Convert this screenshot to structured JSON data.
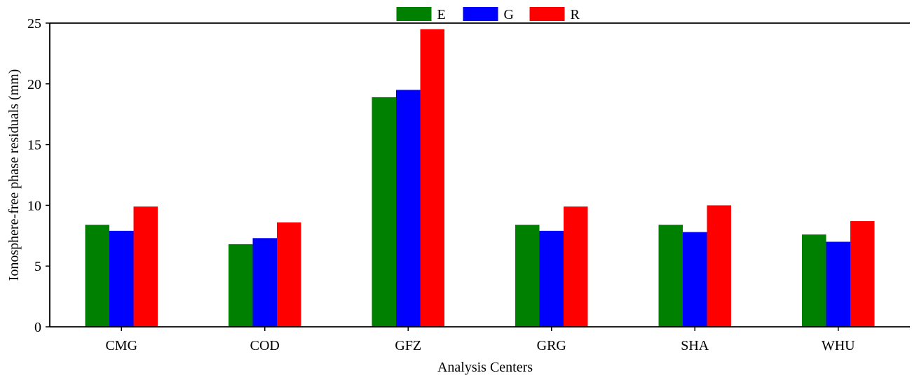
{
  "chart_data": {
    "type": "bar",
    "title": "",
    "xlabel": "Analysis Centers",
    "ylabel": "Ionosphere-free phase residuals (mm)",
    "categories": [
      "CMG",
      "COD",
      "GFZ",
      "GRG",
      "SHA",
      "WHU"
    ],
    "ylim": [
      0,
      25
    ],
    "yticks": [
      0,
      5,
      10,
      15,
      20,
      25
    ],
    "grid": false,
    "legend_position": "top-center",
    "series": [
      {
        "name": "E",
        "color": "#008000",
        "values": [
          8.4,
          6.8,
          18.9,
          8.4,
          8.4,
          7.6
        ]
      },
      {
        "name": "G",
        "color": "#0000ff",
        "values": [
          7.9,
          7.3,
          19.5,
          7.9,
          7.8,
          7.0
        ]
      },
      {
        "name": "R",
        "color": "#ff0000",
        "values": [
          9.9,
          8.6,
          24.5,
          9.9,
          10.0,
          8.7
        ]
      }
    ]
  }
}
